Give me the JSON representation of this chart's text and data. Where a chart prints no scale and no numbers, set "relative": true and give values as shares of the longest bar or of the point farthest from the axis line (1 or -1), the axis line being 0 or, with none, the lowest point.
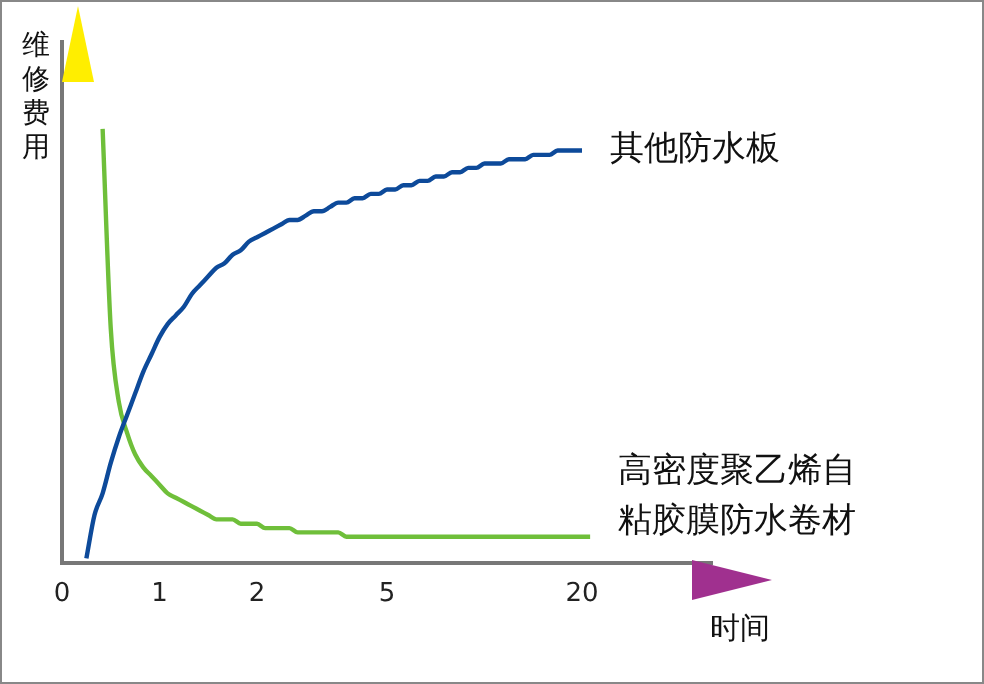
{
  "chart_data": {
    "type": "line",
    "relative": true,
    "ylabel": "维修费用",
    "xlabel": "时间",
    "categories": [
      "0",
      null,
      null,
      null,
      null,
      null,
      null,
      null,
      null,
      null,
      null,
      null,
      "1",
      null,
      null,
      null,
      null,
      null,
      null,
      null,
      null,
      null,
      null,
      null,
      "2",
      null,
      null,
      null,
      null,
      null,
      null,
      null,
      null,
      null,
      null,
      null,
      null,
      null,
      null,
      null,
      "5",
      null,
      null,
      null,
      null,
      null,
      null,
      null,
      null,
      null,
      null,
      null,
      null,
      null,
      null,
      null,
      null,
      null,
      null,
      null,
      null,
      null,
      null,
      null,
      "20",
      null,
      null,
      null,
      null,
      null,
      null,
      null,
      null,
      null,
      null,
      null,
      null,
      null,
      null,
      null,
      null
    ],
    "series": [
      {
        "name": "其他防水板",
        "color": "#0d4a9a",
        "values": [
          null,
          null,
          null,
          0.01,
          0.11,
          0.16,
          0.23,
          0.29,
          0.34,
          0.39,
          0.44,
          0.48,
          0.52,
          0.55,
          0.57,
          0.59,
          0.62,
          0.64,
          0.66,
          0.68,
          0.69,
          0.71,
          0.72,
          0.74,
          0.75,
          0.76,
          0.77,
          0.78,
          0.79,
          0.79,
          0.8,
          0.81,
          0.81,
          0.82,
          0.83,
          0.83,
          0.84,
          0.84,
          0.85,
          0.85,
          0.86,
          0.86,
          0.87,
          0.87,
          0.88,
          0.88,
          0.89,
          0.89,
          0.9,
          0.9,
          0.91,
          0.91,
          0.92,
          0.92,
          0.92,
          0.93,
          0.93,
          0.93,
          0.94,
          0.94,
          0.94,
          0.95,
          0.95,
          0.95,
          0.95,
          null,
          null,
          null,
          null,
          null,
          null,
          null,
          null,
          null,
          null,
          null,
          null,
          null,
          null,
          null,
          null
        ]
      },
      {
        "name": "高密度聚乙烯自粘胶膜防水卷材",
        "color": "#6fbf3a",
        "values": [
          null,
          null,
          null,
          null,
          null,
          1,
          0.54,
          0.37,
          0.3,
          0.25,
          0.22,
          0.2,
          0.18,
          0.16,
          0.15,
          0.14,
          0.13,
          0.12,
          0.11,
          0.1,
          0.1,
          0.1,
          0.09,
          0.09,
          0.09,
          0.08,
          0.08,
          0.08,
          0.08,
          0.07,
          0.07,
          0.07,
          0.07,
          0.07,
          0.07,
          0.06,
          0.06,
          0.06,
          0.06,
          0.06,
          0.06,
          0.06,
          0.06,
          0.06,
          0.06,
          0.06,
          0.06,
          0.06,
          0.06,
          0.06,
          0.06,
          0.06,
          0.06,
          0.06,
          0.06,
          0.06,
          0.06,
          0.06,
          0.06,
          0.06,
          0.06,
          0.06,
          0.06,
          0.06,
          0.06,
          0.06,
          null,
          null,
          null,
          null,
          null,
          null,
          null,
          null,
          null,
          null,
          null,
          null,
          null,
          null,
          null
        ]
      }
    ]
  }
}
